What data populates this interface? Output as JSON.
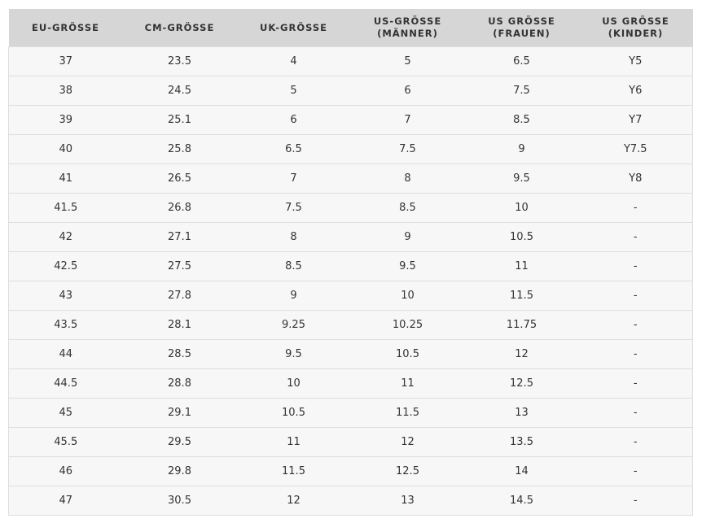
{
  "table": {
    "header": [
      "EU-GRÖSSE",
      "CM-GRÖSSE",
      "UK-GRÖSSE",
      "US-GRÖSSE\n(MÄNNER)",
      "US GRÖSSE\n(FRAUEN)",
      "US GRÖSSE\n(KINDER)"
    ],
    "rows": [
      [
        "37",
        "23.5",
        "4",
        "5",
        "6.5",
        "Y5"
      ],
      [
        "38",
        "24.5",
        "5",
        "6",
        "7.5",
        "Y6"
      ],
      [
        "39",
        "25.1",
        "6",
        "7",
        "8.5",
        "Y7"
      ],
      [
        "40",
        "25.8",
        "6.5",
        "7.5",
        "9",
        "Y7.5"
      ],
      [
        "41",
        "26.5",
        "7",
        "8",
        "9.5",
        "Y8"
      ],
      [
        "41.5",
        "26.8",
        "7.5",
        "8.5",
        "10",
        "-"
      ],
      [
        "42",
        "27.1",
        "8",
        "9",
        "10.5",
        "-"
      ],
      [
        "42.5",
        "27.5",
        "8.5",
        "9.5",
        "11",
        "-"
      ],
      [
        "43",
        "27.8",
        "9",
        "10",
        "11.5",
        "-"
      ],
      [
        "43.5",
        "28.1",
        "9.25",
        "10.25",
        "11.75",
        "-"
      ],
      [
        "44",
        "28.5",
        "9.5",
        "10.5",
        "12",
        "-"
      ],
      [
        "44.5",
        "28.8",
        "10",
        "11",
        "12.5",
        "-"
      ],
      [
        "45",
        "29.1",
        "10.5",
        "11.5",
        "13",
        "-"
      ],
      [
        "45.5",
        "29.5",
        "11",
        "12",
        "13.5",
        "-"
      ],
      [
        "46",
        "29.8",
        "11.5",
        "12.5",
        "14",
        "-"
      ],
      [
        "47",
        "30.5",
        "12",
        "13",
        "14.5",
        "-"
      ]
    ]
  }
}
